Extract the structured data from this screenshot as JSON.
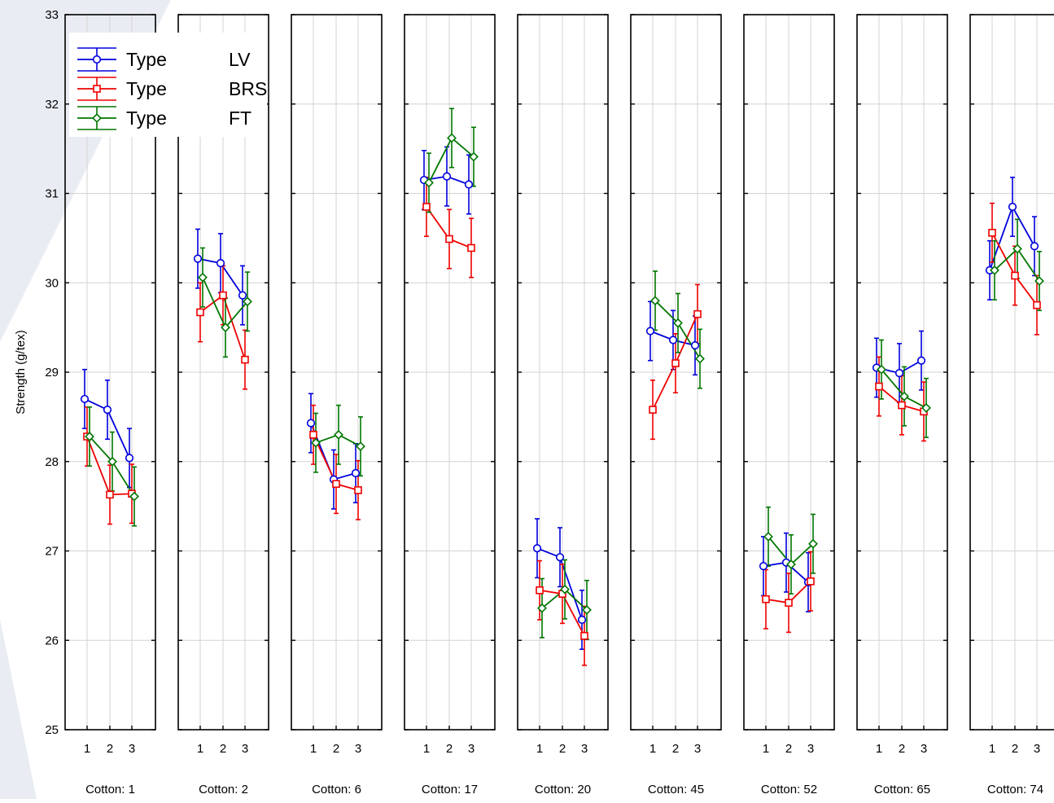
{
  "chart_data": {
    "type": "line",
    "ylabel": "Strength (g/tex)",
    "ylim": [
      25,
      33
    ],
    "y_ticks": [
      "25",
      "26",
      "27",
      "28",
      "29",
      "30",
      "31",
      "32",
      "33"
    ],
    "x_ticks": [
      "1",
      "2",
      "3"
    ],
    "grid": true,
    "legend_position": "top-left",
    "legend_entries": [
      {
        "label": "Type",
        "value": "LV"
      },
      {
        "label": "Type",
        "value": "BRS"
      },
      {
        "label": "Type",
        "value": "FT"
      }
    ],
    "series_styles": [
      {
        "color": "#0000dd",
        "marker": "circle"
      },
      {
        "color": "#ee0000",
        "marker": "square"
      },
      {
        "color": "#007700",
        "marker": "diamond"
      }
    ],
    "error_bar_halfwidth": 0.33,
    "panels": [
      {
        "label": "Cotton: 1",
        "series": [
          {
            "name": "LV",
            "values": [
              28.7,
              28.58,
              28.04
            ]
          },
          {
            "name": "BRS",
            "values": [
              28.28,
              27.63,
              27.64
            ]
          },
          {
            "name": "FT",
            "values": [
              28.28,
              28.0,
              27.61
            ]
          }
        ]
      },
      {
        "label": "Cotton: 2",
        "series": [
          {
            "name": "LV",
            "values": [
              30.27,
              30.22,
              29.86
            ]
          },
          {
            "name": "BRS",
            "values": [
              29.67,
              29.86,
              29.14
            ]
          },
          {
            "name": "FT",
            "values": [
              30.06,
              29.5,
              29.79
            ]
          }
        ]
      },
      {
        "label": "Cotton: 6",
        "series": [
          {
            "name": "LV",
            "values": [
              28.43,
              27.8,
              27.87
            ]
          },
          {
            "name": "BRS",
            "values": [
              28.3,
              27.75,
              27.68
            ]
          },
          {
            "name": "FT",
            "values": [
              28.21,
              28.3,
              28.17
            ]
          }
        ]
      },
      {
        "label": "Cotton: 17",
        "series": [
          {
            "name": "LV",
            "values": [
              31.15,
              31.19,
              31.1
            ]
          },
          {
            "name": "BRS",
            "values": [
              30.85,
              30.49,
              30.39
            ]
          },
          {
            "name": "FT",
            "values": [
              31.12,
              31.62,
              31.41
            ]
          }
        ]
      },
      {
        "label": "Cotton: 20",
        "series": [
          {
            "name": "LV",
            "values": [
              27.03,
              26.93,
              26.23
            ]
          },
          {
            "name": "BRS",
            "values": [
              26.56,
              26.52,
              26.05
            ]
          },
          {
            "name": "FT",
            "values": [
              26.36,
              26.57,
              26.34
            ]
          }
        ]
      },
      {
        "label": "Cotton: 45",
        "series": [
          {
            "name": "LV",
            "values": [
              29.46,
              29.36,
              29.3
            ]
          },
          {
            "name": "BRS",
            "values": [
              28.58,
              29.1,
              29.65
            ]
          },
          {
            "name": "FT",
            "values": [
              29.8,
              29.55,
              29.15
            ]
          }
        ]
      },
      {
        "label": "Cotton: 52",
        "series": [
          {
            "name": "LV",
            "values": [
              26.83,
              26.87,
              26.65
            ]
          },
          {
            "name": "BRS",
            "values": [
              26.46,
              26.42,
              26.66
            ]
          },
          {
            "name": "FT",
            "values": [
              27.16,
              26.85,
              27.08
            ]
          }
        ]
      },
      {
        "label": "Cotton: 65",
        "series": [
          {
            "name": "LV",
            "values": [
              29.05,
              28.99,
              29.13
            ]
          },
          {
            "name": "BRS",
            "values": [
              28.84,
              28.63,
              28.56
            ]
          },
          {
            "name": "FT",
            "values": [
              29.03,
              28.73,
              28.6
            ]
          }
        ]
      },
      {
        "label": "Cotton: 74",
        "series": [
          {
            "name": "LV",
            "values": [
              30.14,
              30.85,
              30.41
            ]
          },
          {
            "name": "BRS",
            "values": [
              30.56,
              30.08,
              29.75
            ]
          },
          {
            "name": "FT",
            "values": [
              30.14,
              30.38,
              30.02
            ]
          }
        ]
      }
    ]
  }
}
